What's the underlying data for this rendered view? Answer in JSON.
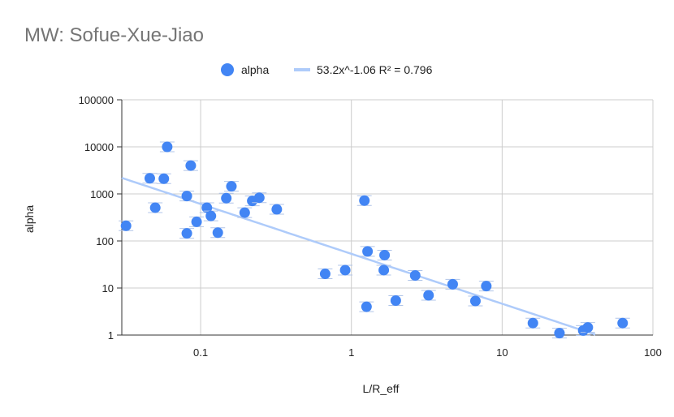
{
  "chart_data": {
    "type": "scatter",
    "title": "MW: Sofue-Xue-Jiao",
    "xlabel": "L/R_eff",
    "ylabel": "alpha",
    "x_scale": "log",
    "y_scale": "log",
    "xlim": [
      0.03,
      100
    ],
    "ylim": [
      1,
      100000
    ],
    "x_ticks": [
      {
        "v": 0.1,
        "label": "0.1"
      },
      {
        "v": 1,
        "label": "1"
      },
      {
        "v": 10,
        "label": "10"
      },
      {
        "v": 100,
        "label": "100"
      }
    ],
    "y_ticks": [
      {
        "v": 1,
        "label": "1"
      },
      {
        "v": 10,
        "label": "10"
      },
      {
        "v": 100,
        "label": "100"
      },
      {
        "v": 1000,
        "label": "1000"
      },
      {
        "v": 10000,
        "label": "10000"
      },
      {
        "v": 100000,
        "label": "100000"
      }
    ],
    "grid": true,
    "legend_position": "top",
    "series": [
      {
        "name": "alpha",
        "color": "#4285f4",
        "points": [
          [
            0.032,
            210
          ],
          [
            0.046,
            2150
          ],
          [
            0.05,
            510
          ],
          [
            0.057,
            2100
          ],
          [
            0.06,
            10000
          ],
          [
            0.081,
            900
          ],
          [
            0.081,
            145
          ],
          [
            0.086,
            4000
          ],
          [
            0.094,
            255
          ],
          [
            0.11,
            510
          ],
          [
            0.117,
            340
          ],
          [
            0.13,
            150
          ],
          [
            0.148,
            810
          ],
          [
            0.16,
            1450
          ],
          [
            0.196,
            400
          ],
          [
            0.22,
            710
          ],
          [
            0.245,
            830
          ],
          [
            0.32,
            470
          ],
          [
            0.67,
            20
          ],
          [
            0.91,
            24
          ],
          [
            1.22,
            720
          ],
          [
            1.26,
            4
          ],
          [
            1.28,
            60
          ],
          [
            1.64,
            24
          ],
          [
            1.66,
            50
          ],
          [
            1.97,
            5.4
          ],
          [
            2.65,
            18.5
          ],
          [
            3.25,
            7
          ],
          [
            4.7,
            12
          ],
          [
            6.65,
            5.3
          ],
          [
            7.85,
            11
          ],
          [
            16.0,
            1.8
          ],
          [
            24.0,
            1.1
          ],
          [
            34.5,
            1.25
          ],
          [
            37.0,
            1.45
          ],
          [
            63.0,
            1.8
          ]
        ]
      }
    ],
    "trendline": {
      "label": "53.2x^-1.06 R² = 0.796",
      "a": 53.2,
      "b": -1.06,
      "color": "#aecbfa"
    }
  }
}
